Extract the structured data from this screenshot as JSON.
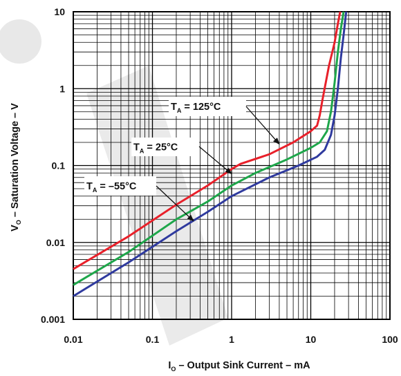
{
  "chart_data": {
    "type": "line",
    "title": "",
    "xlabel": {
      "main": "I",
      "sub": "O",
      "rest": " – Output Sink Current – mA"
    },
    "ylabel": {
      "main": "V",
      "sub": "O",
      "rest": " – Saturation Voltage – V"
    },
    "xscale": "log",
    "yscale": "log",
    "xlim": [
      0.01,
      100
    ],
    "ylim": [
      0.001,
      10
    ],
    "x_ticks": [
      {
        "value": 0.01,
        "label": "0.01"
      },
      {
        "value": 0.1,
        "label": "0.1"
      },
      {
        "value": 1,
        "label": "1"
      },
      {
        "value": 10,
        "label": "10"
      },
      {
        "value": 100,
        "label": "100"
      }
    ],
    "y_ticks": [
      {
        "value": 0.001,
        "label": "0.001"
      },
      {
        "value": 0.01,
        "label": "0.01"
      },
      {
        "value": 0.1,
        "label": "0.1"
      },
      {
        "value": 1,
        "label": "1"
      },
      {
        "value": 10,
        "label": "10"
      }
    ],
    "grid": true,
    "series": [
      {
        "name": "T_A = 125°C",
        "color": "#e8202a",
        "points": [
          [
            0.01,
            0.0045
          ],
          [
            0.05,
            0.012
          ],
          [
            0.2,
            0.031
          ],
          [
            0.5,
            0.055
          ],
          [
            1,
            0.09
          ],
          [
            1.3,
            0.105
          ],
          [
            3,
            0.14
          ],
          [
            6,
            0.2
          ],
          [
            10,
            0.28
          ],
          [
            12,
            0.33
          ],
          [
            13,
            0.45
          ],
          [
            14,
            0.7
          ],
          [
            17,
            2.0
          ],
          [
            20,
            4.0
          ],
          [
            22,
            7.0
          ],
          [
            23.5,
            10
          ]
        ]
      },
      {
        "name": "T_A = 25°C",
        "color": "#1ea64a",
        "points": [
          [
            0.01,
            0.0028
          ],
          [
            0.05,
            0.0075
          ],
          [
            0.2,
            0.02
          ],
          [
            0.5,
            0.034
          ],
          [
            1,
            0.055
          ],
          [
            2,
            0.08
          ],
          [
            5,
            0.12
          ],
          [
            10,
            0.17
          ],
          [
            13,
            0.2
          ],
          [
            16,
            0.28
          ],
          [
            18,
            0.5
          ],
          [
            20,
            1.2
          ],
          [
            22,
            3.0
          ],
          [
            24,
            6.0
          ],
          [
            26,
            10
          ]
        ]
      },
      {
        "name": "T_A = –55°C",
        "color": "#2f3a9e",
        "points": [
          [
            0.01,
            0.002
          ],
          [
            0.05,
            0.0055
          ],
          [
            0.2,
            0.014
          ],
          [
            0.5,
            0.025
          ],
          [
            1,
            0.04
          ],
          [
            3,
            0.07
          ],
          [
            7,
            0.1
          ],
          [
            12,
            0.13
          ],
          [
            15,
            0.16
          ],
          [
            18,
            0.25
          ],
          [
            20,
            0.45
          ],
          [
            22,
            1.0
          ],
          [
            24,
            2.5
          ],
          [
            26,
            5.0
          ],
          [
            28,
            10
          ]
        ]
      }
    ],
    "annotations": [
      {
        "main": "T",
        "sub": "A",
        "rest": " = 125°C",
        "series": 0,
        "arrow_to": [
          4,
          0.19
        ]
      },
      {
        "main": "T",
        "sub": "A",
        "rest": " = 25°C",
        "series": 1,
        "arrow_to": [
          1,
          0.078
        ]
      },
      {
        "main": "T",
        "sub": "A",
        "rest": " = –55°C",
        "series": 2,
        "arrow_to": [
          0.33,
          0.019
        ]
      }
    ]
  }
}
